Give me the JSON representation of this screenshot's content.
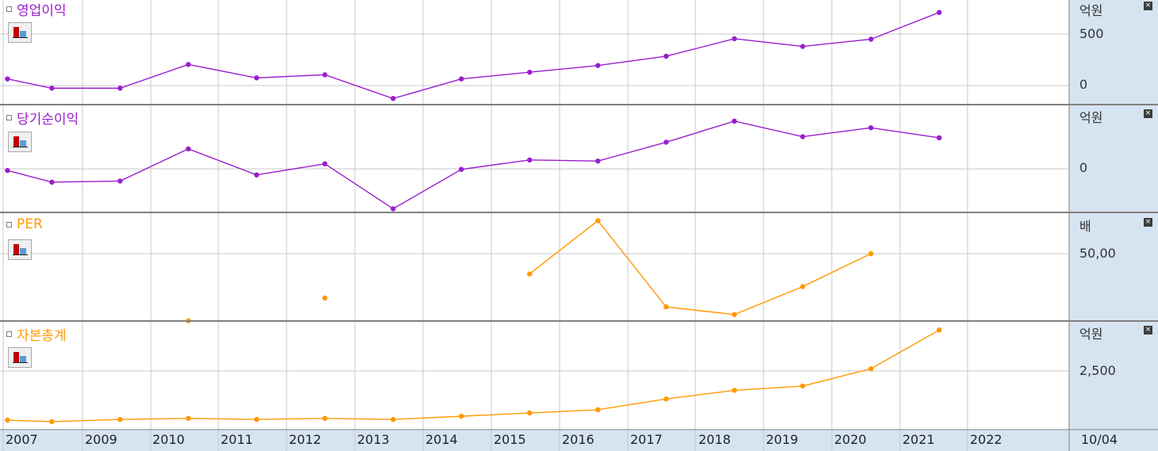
{
  "colors": {
    "purple": "#9a1ecc",
    "orange": "#ff9900",
    "grid": "#c8c8c8",
    "border": "#808080",
    "axis_bg": "#d6e4f2"
  },
  "footer": {
    "date": "10/04"
  },
  "x_labels": [
    "2007",
    "2009",
    "2010",
    "2011",
    "2012",
    "2013",
    "2014",
    "2015",
    "2016",
    "2017",
    "2018",
    "2019",
    "2020",
    "2021",
    "2022"
  ],
  "panels": [
    {
      "title": "영업이익",
      "unit": "억원",
      "color": "#9a1ecc",
      "ticks": [
        "500",
        "0"
      ]
    },
    {
      "title": "당기순이익",
      "unit": "억원",
      "color": "#9a1ecc",
      "ticks": [
        "0"
      ]
    },
    {
      "title": "PER",
      "unit": "배",
      "color": "#ff9900",
      "ticks": [
        "50,00"
      ]
    },
    {
      "title": "자본총계",
      "unit": "억원",
      "color": "#ff9900",
      "ticks": [
        "2,500"
      ]
    }
  ],
  "chart_data": [
    {
      "type": "line",
      "title": "영업이익",
      "unit": "억원",
      "x": [
        2006.9,
        2007.55,
        2008.55,
        2009.55,
        2010.55,
        2011.55,
        2012.55,
        2013.55,
        2014.55,
        2015.55,
        2016.55,
        2017.55,
        2018.55,
        2019.55,
        2020.55
      ],
      "values": [
        65,
        -25,
        -25,
        205,
        75,
        105,
        -125,
        65,
        130,
        195,
        285,
        455,
        380,
        450,
        710
      ],
      "yticks": [
        500,
        0
      ]
    },
    {
      "type": "line",
      "title": "당기순이익",
      "unit": "억원",
      "x": [
        2006.9,
        2007.55,
        2008.55,
        2009.55,
        2010.55,
        2011.55,
        2012.55,
        2013.55,
        2014.55,
        2015.55,
        2016.55,
        2017.55,
        2018.55,
        2019.55,
        2020.55
      ],
      "values": [
        -15,
        -120,
        -110,
        180,
        -55,
        45,
        -360,
        -5,
        80,
        70,
        240,
        430,
        290,
        370,
        280
      ],
      "yticks": [
        0
      ]
    },
    {
      "type": "line",
      "title": "PER",
      "unit": "배",
      "x": [
        2009.55,
        2011.55,
        2014.55,
        2015.55,
        2016.55,
        2017.55,
        2018.55,
        2019.55
      ],
      "values": [
        -3,
        15,
        34,
        76,
        8,
        2,
        24,
        50
      ],
      "segments": [
        [
          0
        ],
        [
          1
        ],
        [
          2,
          3,
          4,
          5,
          6,
          7
        ]
      ],
      "yticks": [
        50
      ]
    },
    {
      "type": "line",
      "title": "자본총계",
      "unit": "억원",
      "x": [
        2006.9,
        2007.55,
        2008.55,
        2009.55,
        2010.55,
        2011.55,
        2012.55,
        2013.55,
        2014.55,
        2015.55,
        2016.55,
        2017.55,
        2018.55,
        2019.55,
        2020.55
      ],
      "values": [
        220,
        150,
        250,
        300,
        250,
        300,
        250,
        400,
        550,
        700,
        1200,
        1600,
        1800,
        2600,
        4400
      ],
      "yticks": [
        2500
      ]
    }
  ]
}
